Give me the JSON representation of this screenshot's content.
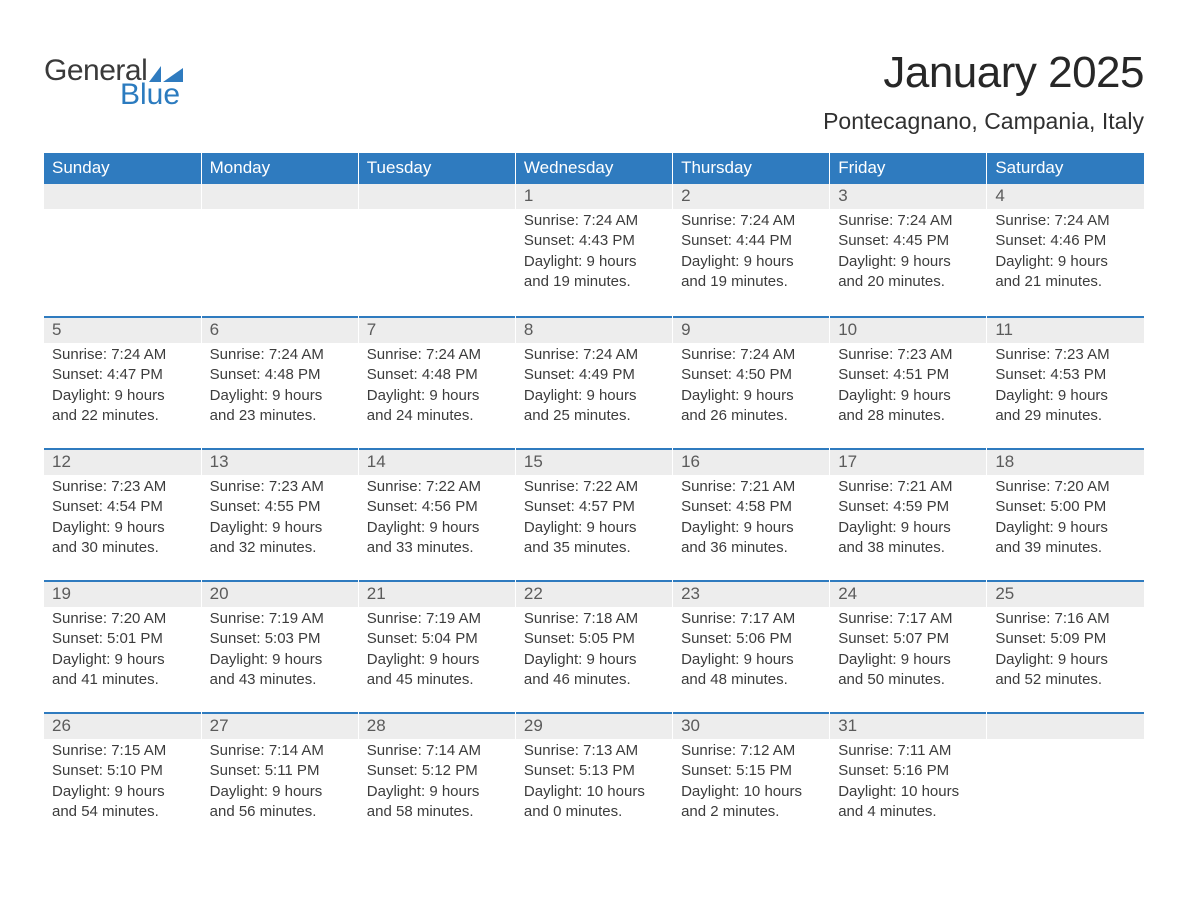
{
  "logo": {
    "word1": "General",
    "word2": "Blue",
    "flag_color": "#2f7bbf"
  },
  "title": "January 2025",
  "location": "Pontecagnano, Campania, Italy",
  "colors": {
    "header_bg": "#2f7bbf",
    "header_text": "#ffffff",
    "daynum_bg": "#ededed",
    "row_divider": "#2f7bbf",
    "body_text": "#3c3c3c",
    "title_text": "#272727"
  },
  "daysOfWeek": [
    "Sunday",
    "Monday",
    "Tuesday",
    "Wednesday",
    "Thursday",
    "Friday",
    "Saturday"
  ],
  "weeks": [
    [
      null,
      null,
      null,
      {
        "n": "1",
        "sunrise": "7:24 AM",
        "sunset": "4:43 PM",
        "daylight": "9 hours and 19 minutes."
      },
      {
        "n": "2",
        "sunrise": "7:24 AM",
        "sunset": "4:44 PM",
        "daylight": "9 hours and 19 minutes."
      },
      {
        "n": "3",
        "sunrise": "7:24 AM",
        "sunset": "4:45 PM",
        "daylight": "9 hours and 20 minutes."
      },
      {
        "n": "4",
        "sunrise": "7:24 AM",
        "sunset": "4:46 PM",
        "daylight": "9 hours and 21 minutes."
      }
    ],
    [
      {
        "n": "5",
        "sunrise": "7:24 AM",
        "sunset": "4:47 PM",
        "daylight": "9 hours and 22 minutes."
      },
      {
        "n": "6",
        "sunrise": "7:24 AM",
        "sunset": "4:48 PM",
        "daylight": "9 hours and 23 minutes."
      },
      {
        "n": "7",
        "sunrise": "7:24 AM",
        "sunset": "4:48 PM",
        "daylight": "9 hours and 24 minutes."
      },
      {
        "n": "8",
        "sunrise": "7:24 AM",
        "sunset": "4:49 PM",
        "daylight": "9 hours and 25 minutes."
      },
      {
        "n": "9",
        "sunrise": "7:24 AM",
        "sunset": "4:50 PM",
        "daylight": "9 hours and 26 minutes."
      },
      {
        "n": "10",
        "sunrise": "7:23 AM",
        "sunset": "4:51 PM",
        "daylight": "9 hours and 28 minutes."
      },
      {
        "n": "11",
        "sunrise": "7:23 AM",
        "sunset": "4:53 PM",
        "daylight": "9 hours and 29 minutes."
      }
    ],
    [
      {
        "n": "12",
        "sunrise": "7:23 AM",
        "sunset": "4:54 PM",
        "daylight": "9 hours and 30 minutes."
      },
      {
        "n": "13",
        "sunrise": "7:23 AM",
        "sunset": "4:55 PM",
        "daylight": "9 hours and 32 minutes."
      },
      {
        "n": "14",
        "sunrise": "7:22 AM",
        "sunset": "4:56 PM",
        "daylight": "9 hours and 33 minutes."
      },
      {
        "n": "15",
        "sunrise": "7:22 AM",
        "sunset": "4:57 PM",
        "daylight": "9 hours and 35 minutes."
      },
      {
        "n": "16",
        "sunrise": "7:21 AM",
        "sunset": "4:58 PM",
        "daylight": "9 hours and 36 minutes."
      },
      {
        "n": "17",
        "sunrise": "7:21 AM",
        "sunset": "4:59 PM",
        "daylight": "9 hours and 38 minutes."
      },
      {
        "n": "18",
        "sunrise": "7:20 AM",
        "sunset": "5:00 PM",
        "daylight": "9 hours and 39 minutes."
      }
    ],
    [
      {
        "n": "19",
        "sunrise": "7:20 AM",
        "sunset": "5:01 PM",
        "daylight": "9 hours and 41 minutes."
      },
      {
        "n": "20",
        "sunrise": "7:19 AM",
        "sunset": "5:03 PM",
        "daylight": "9 hours and 43 minutes."
      },
      {
        "n": "21",
        "sunrise": "7:19 AM",
        "sunset": "5:04 PM",
        "daylight": "9 hours and 45 minutes."
      },
      {
        "n": "22",
        "sunrise": "7:18 AM",
        "sunset": "5:05 PM",
        "daylight": "9 hours and 46 minutes."
      },
      {
        "n": "23",
        "sunrise": "7:17 AM",
        "sunset": "5:06 PM",
        "daylight": "9 hours and 48 minutes."
      },
      {
        "n": "24",
        "sunrise": "7:17 AM",
        "sunset": "5:07 PM",
        "daylight": "9 hours and 50 minutes."
      },
      {
        "n": "25",
        "sunrise": "7:16 AM",
        "sunset": "5:09 PM",
        "daylight": "9 hours and 52 minutes."
      }
    ],
    [
      {
        "n": "26",
        "sunrise": "7:15 AM",
        "sunset": "5:10 PM",
        "daylight": "9 hours and 54 minutes."
      },
      {
        "n": "27",
        "sunrise": "7:14 AM",
        "sunset": "5:11 PM",
        "daylight": "9 hours and 56 minutes."
      },
      {
        "n": "28",
        "sunrise": "7:14 AM",
        "sunset": "5:12 PM",
        "daylight": "9 hours and 58 minutes."
      },
      {
        "n": "29",
        "sunrise": "7:13 AM",
        "sunset": "5:13 PM",
        "daylight": "10 hours and 0 minutes."
      },
      {
        "n": "30",
        "sunrise": "7:12 AM",
        "sunset": "5:15 PM",
        "daylight": "10 hours and 2 minutes."
      },
      {
        "n": "31",
        "sunrise": "7:11 AM",
        "sunset": "5:16 PM",
        "daylight": "10 hours and 4 minutes."
      },
      null
    ]
  ],
  "labels": {
    "sunrise": "Sunrise:",
    "sunset": "Sunset:",
    "daylight": "Daylight:"
  }
}
